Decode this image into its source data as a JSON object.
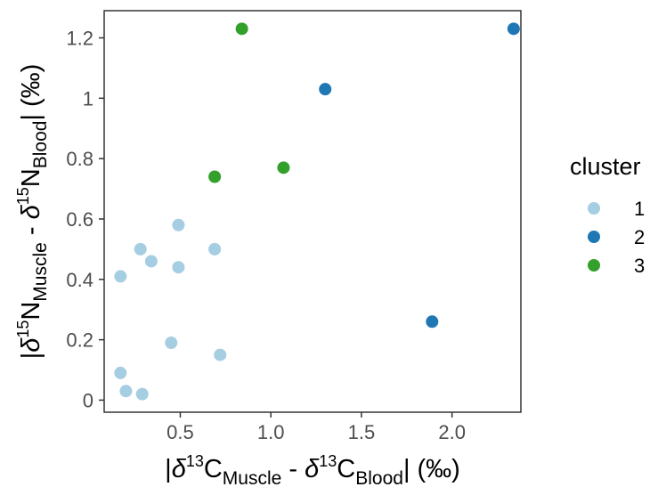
{
  "chart_data": {
    "type": "scatter",
    "xlabel": {
      "prefix": "|",
      "delta": "δ",
      "sup1": "13",
      "el1": "C",
      "sub1": "Muscle",
      "minus": " - ",
      "delta2": "δ",
      "sup2": "13",
      "el2": "C",
      "sub2": "Blood",
      "suffix": "| (‰)"
    },
    "ylabel": {
      "prefix": "|",
      "delta": "δ",
      "sup1": "15",
      "el1": "N",
      "sub1": "Muscle",
      "minus": " - ",
      "delta2": "δ",
      "sup2": "15",
      "el2": "N",
      "sub2": "Blood",
      "suffix": "| (‰)"
    },
    "xlim": [
      0.08,
      2.38
    ],
    "ylim": [
      -0.04,
      1.29
    ],
    "x_ticks": [
      0.5,
      1.0,
      1.5,
      2.0
    ],
    "x_tick_labels": [
      "0.5",
      "1.0",
      "1.5",
      "2.0"
    ],
    "y_ticks": [
      0,
      0.2,
      0.4,
      0.6,
      0.8,
      1.0,
      1.2
    ],
    "y_tick_labels": [
      "0",
      "0.2",
      "0.4",
      "0.6",
      "0.8",
      "1",
      "1.2"
    ],
    "grid": false,
    "legend": {
      "title": "cluster",
      "position": "right",
      "entries": [
        {
          "label": "1",
          "color": "#a6cee3"
        },
        {
          "label": "2",
          "color": "#1f78b4"
        },
        {
          "label": "3",
          "color": "#33a02c"
        }
      ]
    },
    "series": [
      {
        "cluster": "1",
        "color": "#a6cee3",
        "points": [
          {
            "x": 0.17,
            "y": 0.41
          },
          {
            "x": 0.28,
            "y": 0.5
          },
          {
            "x": 0.34,
            "y": 0.46
          },
          {
            "x": 0.49,
            "y": 0.58
          },
          {
            "x": 0.49,
            "y": 0.44
          },
          {
            "x": 0.69,
            "y": 0.5
          },
          {
            "x": 0.45,
            "y": 0.19
          },
          {
            "x": 0.72,
            "y": 0.15
          },
          {
            "x": 0.17,
            "y": 0.09
          },
          {
            "x": 0.2,
            "y": 0.03
          },
          {
            "x": 0.29,
            "y": 0.02
          }
        ]
      },
      {
        "cluster": "2",
        "color": "#1f78b4",
        "points": [
          {
            "x": 2.34,
            "y": 1.23
          },
          {
            "x": 1.3,
            "y": 1.03
          },
          {
            "x": 1.89,
            "y": 0.26
          }
        ]
      },
      {
        "cluster": "3",
        "color": "#33a02c",
        "points": [
          {
            "x": 0.84,
            "y": 1.23
          },
          {
            "x": 1.07,
            "y": 0.77
          },
          {
            "x": 0.69,
            "y": 0.74
          }
        ]
      }
    ]
  }
}
